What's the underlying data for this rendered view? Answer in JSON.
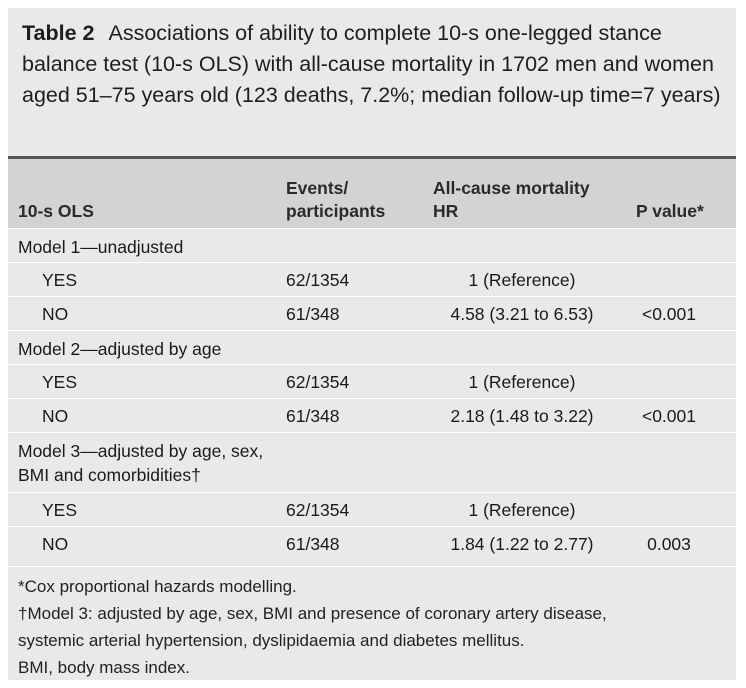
{
  "caption": {
    "table_number": "Table 2",
    "text": "Associations of ability to complete 10-s one-legged stance balance test (10-s OLS) with all-cause mortality in 1702 men and women aged 51–75 years old (123 deaths, 7.2%; median follow-up time=7 years)"
  },
  "columns": {
    "label": "10-s OLS",
    "events_line1": "Events/",
    "events_line2": "participants",
    "hr_line1": "All-cause mortality",
    "hr_line2": "HR",
    "p": "P value*"
  },
  "models": [
    {
      "title": "Model 1—unadjusted",
      "rows": [
        {
          "label": "YES",
          "events": "62/1354",
          "hr": "1 (Reference)",
          "p": ""
        },
        {
          "label": "NO",
          "events": "61/348",
          "hr": "4.58 (3.21 to 6.53)",
          "p": "<0.001"
        }
      ]
    },
    {
      "title": "Model 2—adjusted by age",
      "rows": [
        {
          "label": "YES",
          "events": "62/1354",
          "hr": "1 (Reference)",
          "p": ""
        },
        {
          "label": "NO",
          "events": "61/348",
          "hr": "2.18 (1.48 to 3.22)",
          "p": "<0.001"
        }
      ]
    },
    {
      "title": "Model 3—adjusted by age, sex, BMI and comorbidities†",
      "rows": [
        {
          "label": "YES",
          "events": "62/1354",
          "hr": "1 (Reference)",
          "p": ""
        },
        {
          "label": "NO",
          "events": "61/348",
          "hr": "1.84 (1.22 to 2.77)",
          "p": "0.003"
        }
      ]
    }
  ],
  "footnotes": [
    "*Cox proportional hazards modelling.",
    "†Model 3: adjusted by age, sex, BMI and presence of coronary artery disease,",
    "systemic arterial hypertension, dyslipidaemia and diabetes mellitus.",
    "BMI, body mass index."
  ]
}
